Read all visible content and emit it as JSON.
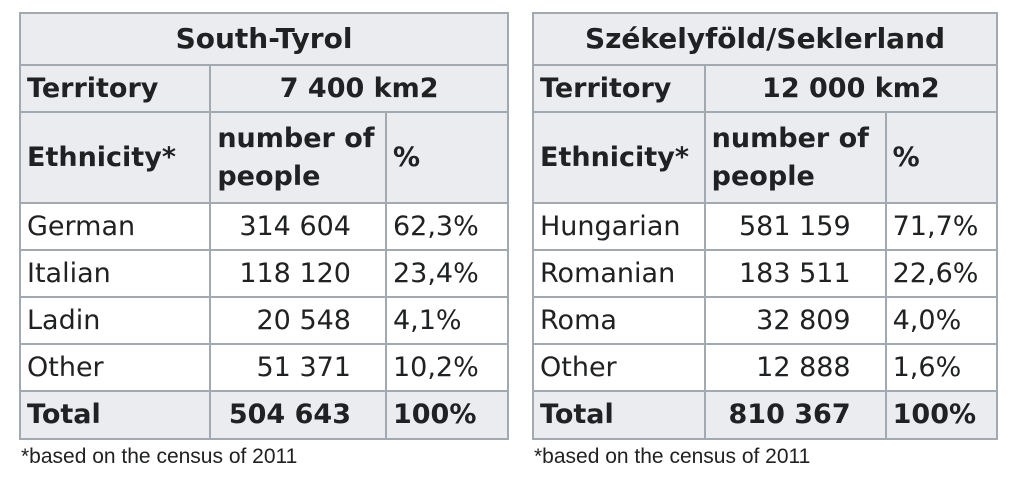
{
  "tables": [
    {
      "title": "South-Tyrol",
      "territory_label": "Territory",
      "territory_value": "7 400 km2",
      "headers": {
        "ethnicity": "Ethnicity*",
        "people": "number of people",
        "percent": "%"
      },
      "rows": [
        {
          "ethnicity": "German",
          "people": "314 604",
          "percent": "62,3%"
        },
        {
          "ethnicity": "Italian",
          "people": "118 120",
          "percent": "23,4%"
        },
        {
          "ethnicity": "Ladin",
          "people": "20 548",
          "percent": "4,1%"
        },
        {
          "ethnicity": "Other",
          "people": "51 371",
          "percent": "10,2%"
        }
      ],
      "total": {
        "label": "Total",
        "people": "504 643",
        "percent": "100%"
      },
      "footnote": "*based on the census of 2011"
    },
    {
      "title": "Székelyföld/Seklerland",
      "territory_label": "Territory",
      "territory_value": "12 000 km2",
      "headers": {
        "ethnicity": "Ethnicity*",
        "people": "number of people",
        "percent": "%"
      },
      "rows": [
        {
          "ethnicity": "Hungarian",
          "people": "581 159",
          "percent": "71,7%"
        },
        {
          "ethnicity": "Romanian",
          "people": "183 511",
          "percent": "22,6%"
        },
        {
          "ethnicity": "Roma",
          "people": "32 809",
          "percent": "4,0%"
        },
        {
          "ethnicity": "Other",
          "people": "12 888",
          "percent": "1,6%"
        }
      ],
      "total": {
        "label": "Total",
        "people": "810 367",
        "percent": "100%"
      },
      "footnote": "*based on the census of 2011"
    }
  ],
  "colors": {
    "header_background": "#eaecf0",
    "border": "#a2a9b1",
    "text": "#202122"
  }
}
